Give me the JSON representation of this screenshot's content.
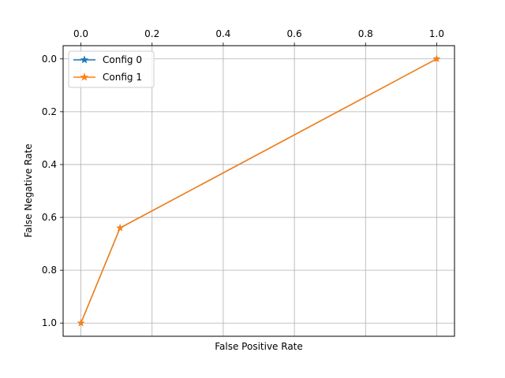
{
  "chart_data": {
    "type": "line",
    "title": "",
    "xlabel": "False Positive Rate",
    "ylabel": "False Negative Rate",
    "xlim": [
      -0.05,
      1.05
    ],
    "ylim": [
      -0.05,
      1.05
    ],
    "y_inverted": true,
    "x_axis_position": "top",
    "grid": true,
    "legend": "top-left",
    "x_ticks": [
      0.0,
      0.2,
      0.4,
      0.6,
      0.8,
      1.0
    ],
    "x_tick_labels": [
      "0.0",
      "0.2",
      "0.4",
      "0.6",
      "0.8",
      "1.0"
    ],
    "y_ticks": [
      0.0,
      0.2,
      0.4,
      0.6,
      0.8,
      1.0
    ],
    "y_tick_labels": [
      "0.0",
      "0.2",
      "0.4",
      "0.6",
      "0.8",
      "1.0"
    ],
    "marker": "star",
    "series": [
      {
        "name": "Config 0",
        "color": "#1f77b4",
        "x": [
          0.0,
          0.11,
          1.0
        ],
        "y": [
          1.0,
          0.64,
          0.0
        ]
      },
      {
        "name": "Config 1",
        "color": "#ff7f0e",
        "x": [
          0.0,
          0.11,
          1.0
        ],
        "y": [
          1.0,
          0.64,
          0.0
        ]
      }
    ]
  }
}
